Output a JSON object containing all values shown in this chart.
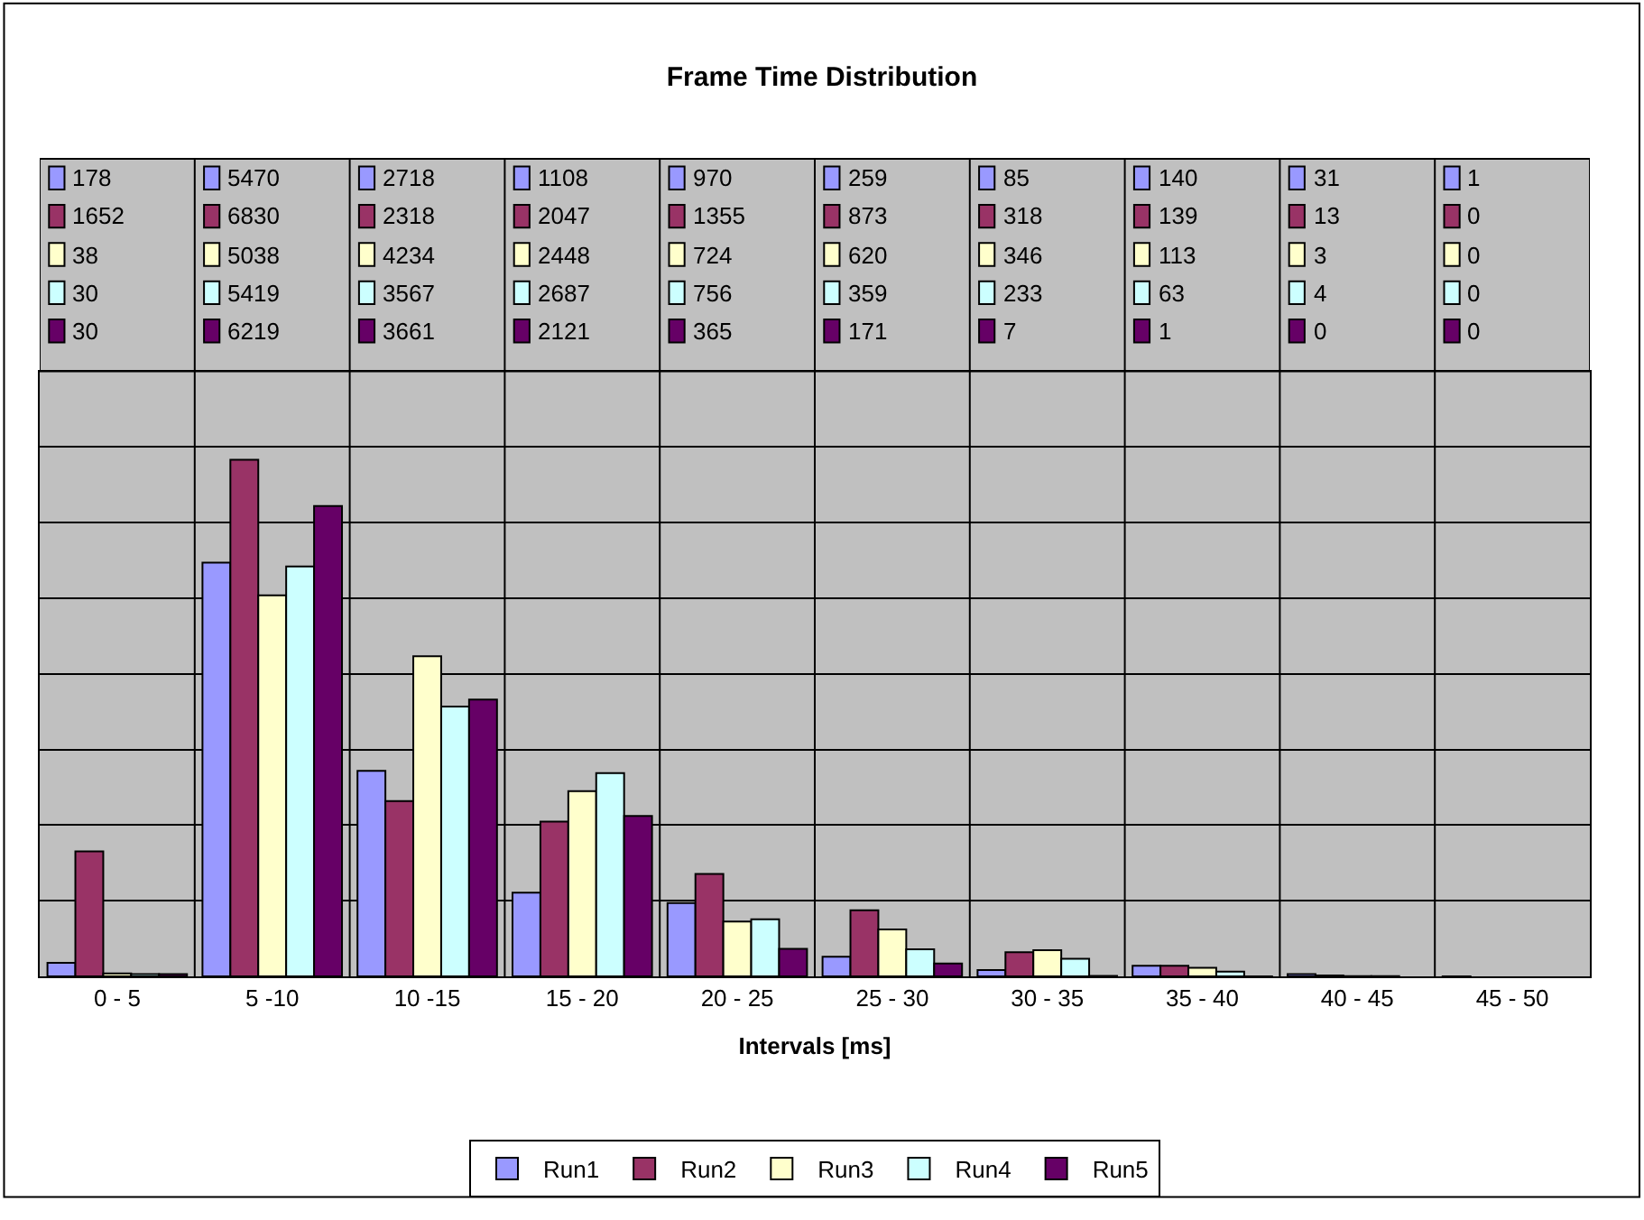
{
  "chart_data": {
    "type": "bar",
    "title": "Frame Time Distribution",
    "xlabel": "Intervals [ms]",
    "categories": [
      "0 - 5",
      "5 -10",
      "10 -15",
      "15 - 20",
      "20 - 25",
      "25 - 30",
      "30 - 35",
      "35 - 40",
      "40 - 45",
      "45 - 50"
    ],
    "series": [
      {
        "name": "Run1",
        "color": "#9999ff",
        "values": [
          178,
          5470,
          2718,
          1108,
          970,
          259,
          85,
          140,
          31,
          1
        ]
      },
      {
        "name": "Run2",
        "color": "#993366",
        "values": [
          1652,
          6830,
          2318,
          2047,
          1355,
          873,
          318,
          139,
          13,
          0
        ]
      },
      {
        "name": "Run3",
        "color": "#ffffcc",
        "values": [
          38,
          5038,
          4234,
          2448,
          724,
          620,
          346,
          113,
          3,
          0
        ]
      },
      {
        "name": "Run4",
        "color": "#ccffff",
        "values": [
          30,
          5419,
          3567,
          2687,
          756,
          359,
          233,
          63,
          4,
          0
        ]
      },
      {
        "name": "Run5",
        "color": "#660066",
        "values": [
          30,
          6219,
          3661,
          2121,
          365,
          171,
          7,
          1,
          0,
          0
        ]
      }
    ],
    "ylim": [
      0,
      8000
    ],
    "yticks": [
      {
        "value": 0,
        "label": null
      },
      {
        "value": 1000,
        "label": null
      },
      {
        "value": 2000,
        "label": null
      },
      {
        "value": 3000,
        "label": null
      },
      {
        "value": 4000,
        "label": null
      },
      {
        "value": 5000,
        "label": null
      },
      {
        "value": 6000,
        "label": null
      },
      {
        "value": 7000,
        "label": null
      },
      {
        "value": 8000,
        "label": null
      }
    ],
    "tick_labels": "x",
    "grid": true,
    "legend": "bottom",
    "data_labels": true
  }
}
